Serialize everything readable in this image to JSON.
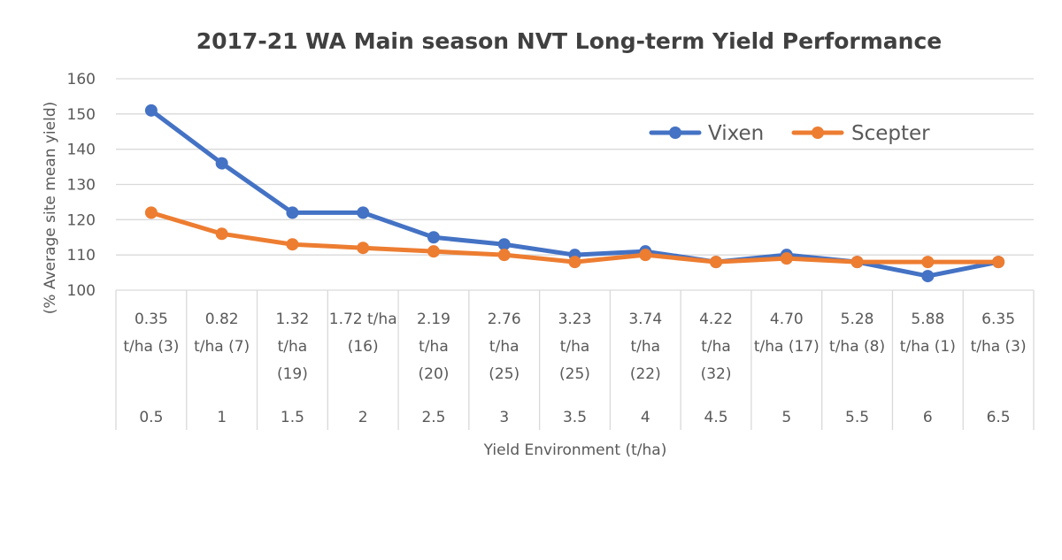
{
  "chart_data": {
    "type": "line",
    "title": "2017-21 WA Main season NVT Long-term Yield Performance",
    "xlabel": "Yield Environment (t/ha)",
    "ylabel": "(% Average site mean yield)",
    "ylim": [
      100,
      160
    ],
    "yticks": [
      100,
      110,
      120,
      130,
      140,
      150,
      160
    ],
    "grid": true,
    "legend_position": "top-right",
    "categories": [
      [
        "0.35",
        "t/ha (3)"
      ],
      [
        "0.82",
        "t/ha (7)"
      ],
      [
        "1.32",
        "t/ha",
        "(19)"
      ],
      [
        "1.72 t/ha",
        "(16)"
      ],
      [
        "2.19",
        "t/ha",
        "(20)"
      ],
      [
        "2.76",
        "t/ha",
        "(25)"
      ],
      [
        "3.23",
        "t/ha",
        "(25)"
      ],
      [
        "3.74",
        "t/ha",
        "(22)"
      ],
      [
        "4.22",
        "t/ha",
        "(32)"
      ],
      [
        "4.70",
        "t/ha (17)"
      ],
      [
        "5.28",
        "t/ha (8)"
      ],
      [
        "5.88",
        "t/ha (1)"
      ],
      [
        "6.35",
        "t/ha (3)"
      ]
    ],
    "x": [
      "0.5",
      "1",
      "1.5",
      "2",
      "2.5",
      "3",
      "3.5",
      "4",
      "4.5",
      "5",
      "5.5",
      "6",
      "6.5"
    ],
    "series": [
      {
        "name": "Vixen",
        "color": "#4472C4",
        "values": [
          151,
          136,
          122,
          122,
          115,
          113,
          110,
          111,
          108,
          110,
          108,
          104,
          108
        ]
      },
      {
        "name": "Scepter",
        "color": "#ED7D31",
        "values": [
          122,
          116,
          113,
          112,
          111,
          110,
          108,
          110,
          108,
          109,
          108,
          108,
          108
        ]
      }
    ]
  }
}
